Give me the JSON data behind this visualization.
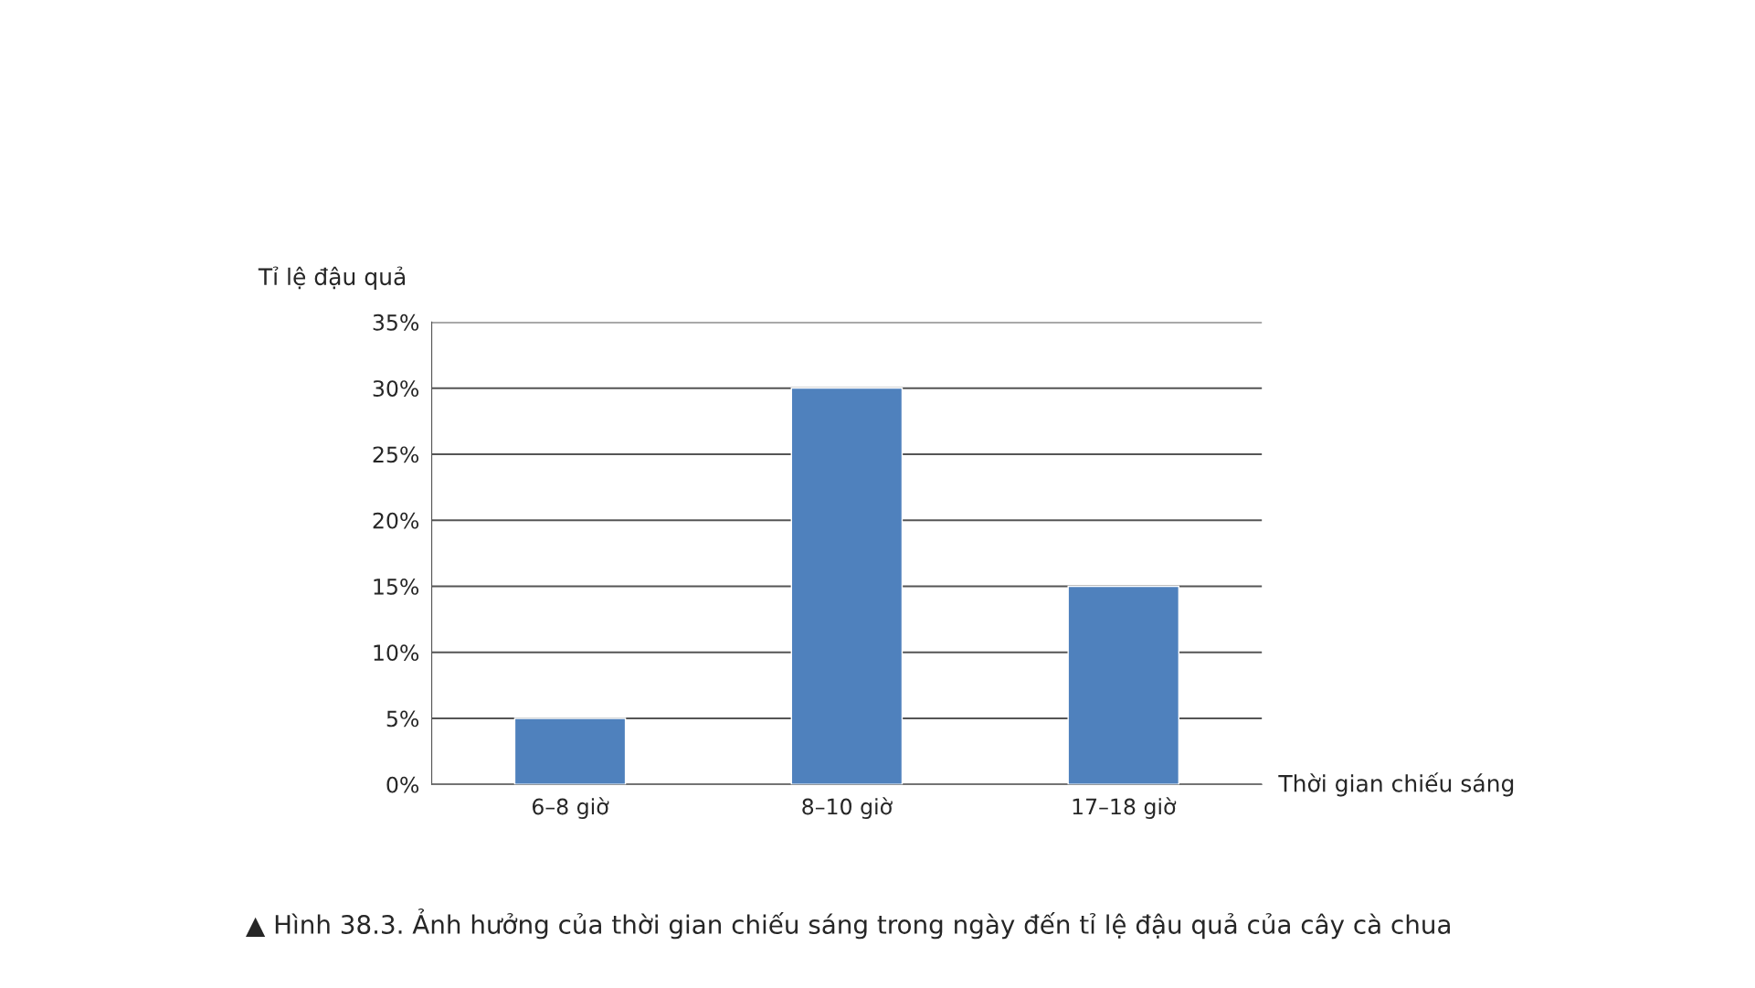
{
  "chart_data": {
    "type": "bar",
    "categories": [
      "6–8 giờ",
      "8–10 giờ",
      "17–18 giờ"
    ],
    "values": [
      5,
      30,
      15
    ],
    "color": "#4f81bd",
    "ylim": [
      0,
      35
    ],
    "yticks": [
      {
        "value": 0,
        "label": "0%"
      },
      {
        "value": 5,
        "label": "5%"
      },
      {
        "value": 10,
        "label": "10%"
      },
      {
        "value": 15,
        "label": "15%"
      },
      {
        "value": 20,
        "label": "20%"
      },
      {
        "value": 25,
        "label": "25%"
      },
      {
        "value": 30,
        "label": "30%"
      },
      {
        "value": 35,
        "label": "35%"
      }
    ],
    "ylabel": "Tỉ lệ đậu quả",
    "xlabel": "Thời gian chiếu sáng",
    "grid": "y",
    "title": "▲ Hình 38.3. Ảnh hưởng của thời gian chiếu sáng trong ngày đến tỉ lệ đậu quả của cây cà chua"
  }
}
